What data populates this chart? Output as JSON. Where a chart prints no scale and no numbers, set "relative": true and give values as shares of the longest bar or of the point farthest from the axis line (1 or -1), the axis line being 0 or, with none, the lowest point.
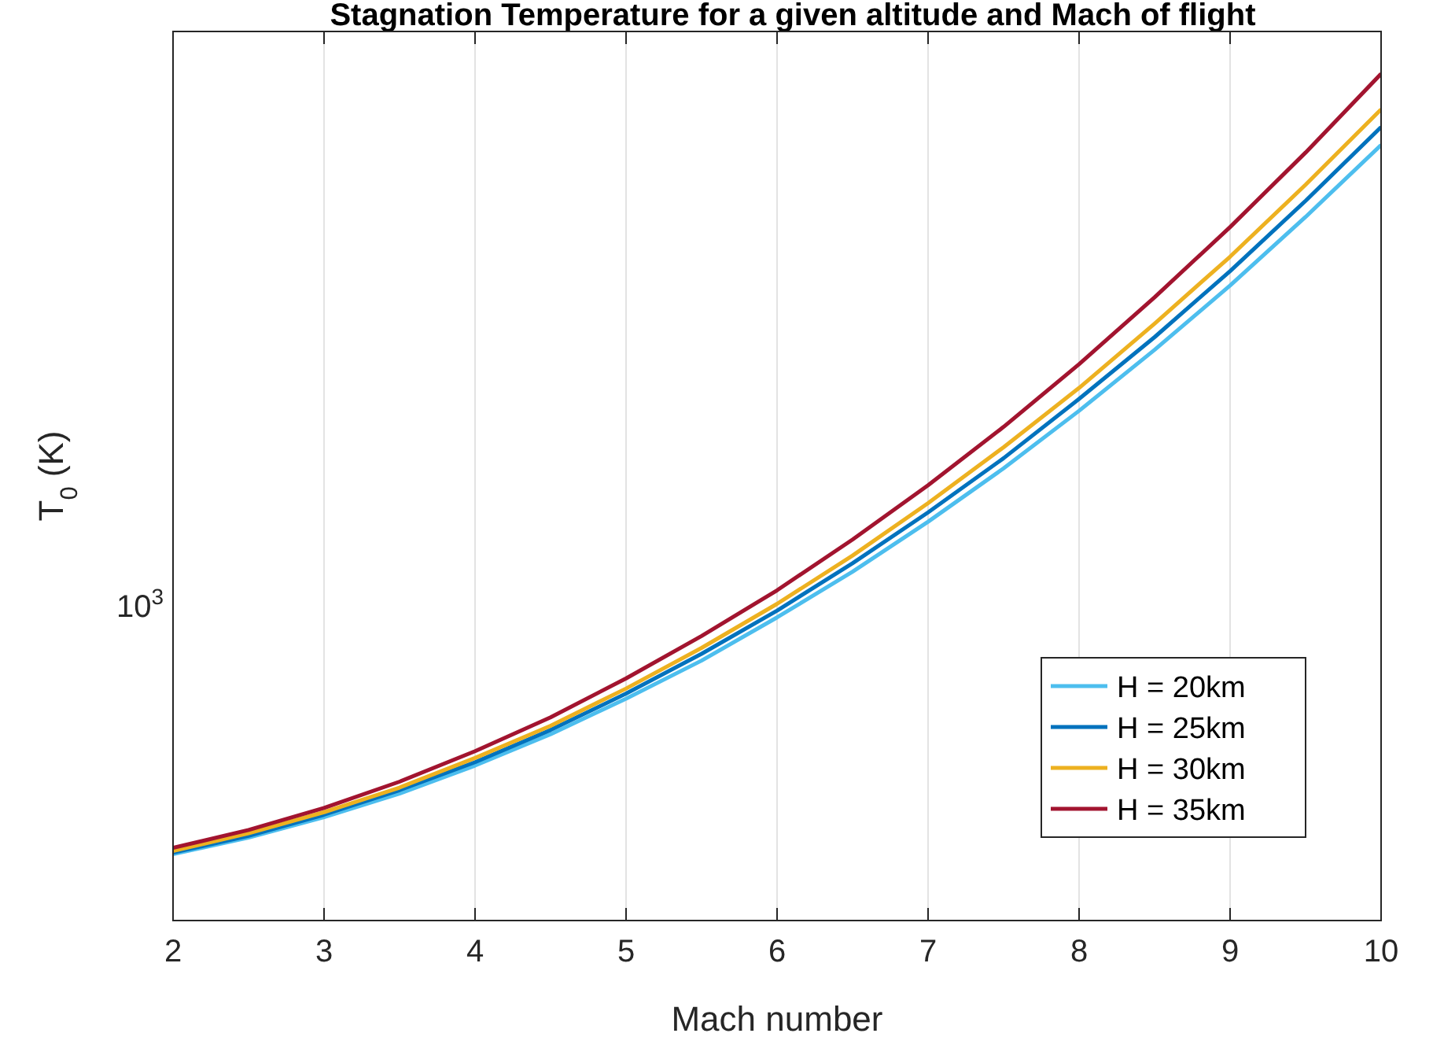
{
  "chart_data": {
    "type": "line",
    "title": "Stagnation Temperature for a given altitude and Mach of flight",
    "xlabel": "Mach number",
    "ylabel": "T$_{0}$ (K)",
    "x": [
      2,
      2.5,
      3,
      3.5,
      4,
      4.5,
      5,
      5.5,
      6,
      6.5,
      7,
      7.5,
      8,
      8.5,
      9,
      9.5,
      10
    ],
    "series": [
      {
        "name": "H = 20km",
        "color": "#4dbeee",
        "values": [
          0.0785,
          0.098,
          0.122,
          0.15,
          0.183,
          0.22,
          0.262,
          0.307,
          0.358,
          0.412,
          0.471,
          0.534,
          0.602,
          0.674,
          0.75,
          0.831,
          0.916
        ]
      },
      {
        "name": "H = 25km",
        "color": "#0072bd",
        "values": [
          0.0803,
          0.1,
          0.125,
          0.154,
          0.187,
          0.225,
          0.268,
          0.315,
          0.366,
          0.422,
          0.482,
          0.546,
          0.616,
          0.689,
          0.767,
          0.85,
          0.937
        ]
      },
      {
        "name": "H = 30km",
        "color": "#edb120",
        "values": [
          0.0821,
          0.103,
          0.128,
          0.157,
          0.192,
          0.23,
          0.274,
          0.322,
          0.374,
          0.431,
          0.493,
          0.559,
          0.629,
          0.705,
          0.784,
          0.869,
          0.958
        ]
      },
      {
        "name": "H = 35km",
        "color": "#a2142f",
        "values": [
          0.0858,
          0.107,
          0.133,
          0.164,
          0.2,
          0.24,
          0.286,
          0.336,
          0.39,
          0.45,
          0.514,
          0.583,
          0.657,
          0.736,
          0.819,
          0.907,
          1
        ]
      }
    ],
    "relative": true,
    "annotations": [
      "10$^{3}$"
    ],
    "xlim": [
      2,
      10
    ],
    "xticks": [
      2,
      3,
      4,
      5,
      6,
      7,
      8,
      9,
      10
    ],
    "grid": "x",
    "legend": "bottom right",
    "marker": "none",
    "line_style": "solid"
  }
}
